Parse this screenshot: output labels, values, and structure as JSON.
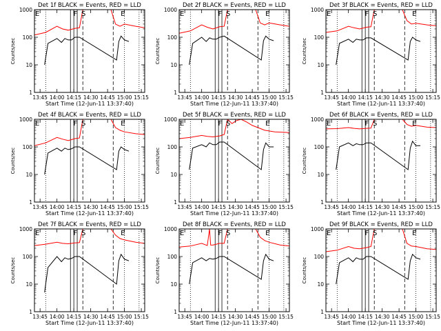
{
  "chart_data": {
    "type": "line",
    "shared": {
      "xlabel": "Start Time (12-Jun-11 13:37:40)",
      "ylabel": "Counts/sec",
      "yscale": "log",
      "ylim": [
        1,
        1000
      ],
      "yticks": [
        "1",
        "10",
        "100",
        "1000"
      ],
      "xlim": [
        "13:40",
        "15:18"
      ],
      "xticks": [
        "13:45",
        "14:00",
        "14:15",
        "14:30",
        "14:45",
        "15:00",
        "15:15"
      ],
      "series_colors": {
        "events": "#000000",
        "lld": "#ff0000"
      },
      "markers": [
        {
          "label": "E",
          "time": "13:40"
        },
        {
          "label": "F",
          "time": "14:14"
        },
        {
          "label": "S",
          "time": "14:21"
        },
        {
          "label": "E",
          "time": "14:56"
        }
      ],
      "vlines": [
        {
          "time": "13:50",
          "style": "dotted"
        },
        {
          "time": "14:12",
          "style": "solid"
        },
        {
          "time": "14:15",
          "style": "solid"
        },
        {
          "time": "14:18",
          "style": "solid"
        },
        {
          "time": "14:23",
          "style": "dashed"
        },
        {
          "time": "14:50",
          "style": "dashed"
        },
        {
          "time": "15:00",
          "style": "dotted"
        },
        {
          "time": "15:13",
          "style": "dotted"
        }
      ]
    },
    "panels": [
      {
        "title": "Det 1f BLACK = Events, RED = LLD",
        "events": {
          "name": "Events",
          "times": [
            "13:49",
            "13:52",
            "14:00",
            "14:04",
            "14:07",
            "14:10",
            "14:13",
            "14:16",
            "14:20",
            "14:53",
            "14:55",
            "14:57",
            "15:00",
            "15:04"
          ],
          "values": [
            10,
            60,
            90,
            65,
            90,
            80,
            80,
            100,
            100,
            15,
            70,
            110,
            80,
            70
          ]
        },
        "lld": {
          "name": "LLD",
          "times": [
            "13:40",
            "13:50",
            "14:00",
            "14:05",
            "14:10",
            "14:16",
            "14:20",
            "14:23",
            "14:48",
            "14:52",
            "14:56",
            "15:00",
            "15:10",
            "15:18"
          ],
          "values": [
            120,
            150,
            250,
            200,
            180,
            210,
            220,
            1000,
            1000,
            300,
            250,
            300,
            250,
            220
          ]
        }
      },
      {
        "title": "Det 2f BLACK = Events, RED = LLD",
        "events": {
          "name": "Events",
          "times": [
            "13:49",
            "13:52",
            "14:00",
            "14:04",
            "14:07",
            "14:10",
            "14:13",
            "14:16",
            "14:20",
            "14:53",
            "14:55",
            "14:57",
            "15:00",
            "15:04"
          ],
          "values": [
            10,
            60,
            100,
            70,
            95,
            85,
            85,
            100,
            110,
            15,
            75,
            110,
            85,
            75
          ]
        },
        "lld": {
          "name": "LLD",
          "times": [
            "13:40",
            "13:50",
            "14:00",
            "14:05",
            "14:10",
            "14:16",
            "14:20",
            "14:23",
            "14:48",
            "14:52",
            "14:56",
            "15:00",
            "15:10",
            "15:18"
          ],
          "values": [
            140,
            170,
            280,
            230,
            200,
            240,
            250,
            1000,
            1000,
            330,
            280,
            330,
            280,
            250
          ]
        }
      },
      {
        "title": "Det 3f BLACK = Events, RED = LLD",
        "events": {
          "name": "Events",
          "times": [
            "13:49",
            "13:52",
            "14:00",
            "14:04",
            "14:07",
            "14:10",
            "14:13",
            "14:16",
            "14:20",
            "14:53",
            "14:55",
            "14:57",
            "15:00",
            "15:04"
          ],
          "values": [
            10,
            60,
            85,
            65,
            85,
            80,
            80,
            95,
            95,
            15,
            70,
            100,
            80,
            70
          ]
        },
        "lld": {
          "name": "LLD",
          "times": [
            "13:40",
            "13:50",
            "14:00",
            "14:05",
            "14:10",
            "14:16",
            "14:20",
            "14:23",
            "14:48",
            "14:52",
            "14:56",
            "15:00",
            "15:10",
            "15:18"
          ],
          "values": [
            150,
            170,
            250,
            220,
            200,
            230,
            240,
            1000,
            1000,
            400,
            300,
            320,
            280,
            260
          ]
        }
      },
      {
        "title": "Det 4f BLACK = Events, RED = LLD",
        "events": {
          "name": "Events",
          "times": [
            "13:49",
            "13:52",
            "14:00",
            "14:04",
            "14:07",
            "14:10",
            "14:13",
            "14:16",
            "14:20",
            "14:53",
            "14:55",
            "14:57",
            "15:00",
            "15:04"
          ],
          "values": [
            10,
            60,
            90,
            70,
            90,
            80,
            85,
            100,
            100,
            15,
            70,
            100,
            80,
            70
          ]
        },
        "lld": {
          "name": "LLD",
          "times": [
            "13:40",
            "13:50",
            "14:00",
            "14:05",
            "14:10",
            "14:16",
            "14:20",
            "14:23",
            "14:48",
            "14:52",
            "14:56",
            "15:00",
            "15:10",
            "15:18"
          ],
          "values": [
            110,
            140,
            220,
            190,
            170,
            200,
            210,
            1000,
            1000,
            500,
            400,
            350,
            300,
            280
          ]
        }
      },
      {
        "title": "Det 5f BLACK = Events, RED = LLD",
        "events": {
          "name": "Events",
          "times": [
            "13:49",
            "13:52",
            "14:00",
            "14:04",
            "14:07",
            "14:10",
            "14:13",
            "14:16",
            "14:20",
            "14:53",
            "14:55",
            "14:57",
            "15:00",
            "15:04"
          ],
          "values": [
            15,
            90,
            120,
            100,
            140,
            120,
            120,
            150,
            150,
            15,
            80,
            140,
            100,
            100
          ]
        },
        "lld": {
          "name": "LLD",
          "times": [
            "13:40",
            "13:50",
            "14:00",
            "14:05",
            "14:10",
            "14:16",
            "14:20",
            "14:23",
            "14:27",
            "14:31",
            "14:35",
            "14:40",
            "14:45",
            "14:50",
            "14:56",
            "15:05",
            "15:18"
          ],
          "values": [
            200,
            220,
            260,
            240,
            230,
            250,
            280,
            1000,
            700,
            900,
            1000,
            800,
            600,
            500,
            400,
            350,
            330
          ]
        }
      },
      {
        "title": "Det 6f BLACK = Events, RED = LLD",
        "events": {
          "name": "Events",
          "times": [
            "13:49",
            "13:52",
            "14:00",
            "14:04",
            "14:07",
            "14:10",
            "14:13",
            "14:16",
            "14:20",
            "14:53",
            "14:55",
            "14:57",
            "15:00",
            "15:04"
          ],
          "values": [
            15,
            100,
            140,
            110,
            130,
            120,
            120,
            140,
            140,
            15,
            90,
            160,
            110,
            110
          ]
        },
        "lld": {
          "name": "LLD",
          "times": [
            "13:40",
            "13:50",
            "14:00",
            "14:05",
            "14:10",
            "14:16",
            "14:20",
            "14:23",
            "14:48",
            "14:52",
            "14:56",
            "15:00",
            "15:10",
            "15:18"
          ],
          "values": [
            450,
            460,
            500,
            470,
            450,
            470,
            480,
            1000,
            1000,
            650,
            560,
            600,
            520,
            500
          ]
        }
      },
      {
        "title": "Det 7f BLACK = Events, RED = LLD",
        "events": {
          "name": "Events",
          "times": [
            "13:49",
            "13:52",
            "14:00",
            "14:04",
            "14:07",
            "14:10",
            "14:13",
            "14:16",
            "14:20",
            "14:53",
            "14:55",
            "14:57",
            "15:00",
            "15:04"
          ],
          "values": [
            5,
            40,
            100,
            65,
            90,
            80,
            85,
            100,
            100,
            10,
            70,
            120,
            80,
            70
          ]
        },
        "lld": {
          "name": "LLD",
          "times": [
            "13:40",
            "13:50",
            "14:00",
            "14:05",
            "14:10",
            "14:16",
            "14:20",
            "14:23",
            "14:48",
            "14:52",
            "14:56",
            "15:00",
            "15:10",
            "15:18"
          ],
          "values": [
            250,
            280,
            330,
            300,
            290,
            310,
            320,
            1000,
            1000,
            600,
            450,
            400,
            330,
            300
          ]
        }
      },
      {
        "title": "Det 8f BLACK = Events, RED = LLD",
        "events": {
          "name": "Events",
          "times": [
            "13:49",
            "13:52",
            "14:00",
            "14:04",
            "14:07",
            "14:10",
            "14:13",
            "14:16",
            "14:20",
            "14:53",
            "14:55",
            "14:57",
            "15:00",
            "15:04"
          ],
          "values": [
            10,
            60,
            90,
            70,
            85,
            80,
            85,
            100,
            100,
            15,
            70,
            120,
            80,
            70
          ]
        },
        "lld": {
          "name": "LLD",
          "times": [
            "13:40",
            "13:50",
            "14:00",
            "14:05",
            "14:07",
            "14:08",
            "14:10",
            "14:16",
            "14:20",
            "14:23",
            "14:48",
            "14:52",
            "14:56",
            "15:00",
            "15:10",
            "15:18"
          ],
          "values": [
            220,
            240,
            300,
            250,
            1000,
            260,
            260,
            300,
            300,
            1000,
            1000,
            500,
            380,
            330,
            260,
            240
          ]
        }
      },
      {
        "title": "Det 9f BLACK = Events, RED = LLD",
        "events": {
          "name": "Events",
          "times": [
            "13:49",
            "13:52",
            "14:00",
            "14:04",
            "14:07",
            "14:10",
            "14:13",
            "14:16",
            "14:20",
            "14:53",
            "14:55",
            "14:57",
            "15:00",
            "15:04"
          ],
          "values": [
            10,
            60,
            90,
            65,
            90,
            80,
            80,
            100,
            100,
            15,
            70,
            120,
            90,
            80
          ]
        },
        "lld": {
          "name": "LLD",
          "times": [
            "13:40",
            "13:50",
            "14:00",
            "14:05",
            "14:10",
            "14:16",
            "14:20",
            "14:23",
            "14:48",
            "14:52",
            "14:56",
            "15:00",
            "15:10",
            "15:18"
          ],
          "values": [
            150,
            170,
            230,
            200,
            190,
            210,
            230,
            1000,
            1000,
            300,
            240,
            230,
            190,
            180
          ]
        }
      }
    ]
  }
}
